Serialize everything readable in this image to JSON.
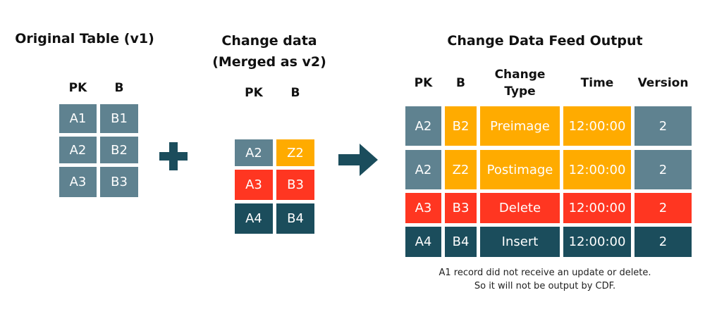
{
  "colors": {
    "unchanged": "#5f8290",
    "update": "#ffab00",
    "delete": "#ff3621",
    "insert": "#1b4d5c"
  },
  "original": {
    "title": "Original Table (v1)",
    "headers": [
      "PK",
      "B"
    ],
    "rows": [
      {
        "cells": [
          "A1",
          "B1"
        ],
        "colors": [
          "unchanged",
          "unchanged"
        ]
      },
      {
        "cells": [
          "A2",
          "B2"
        ],
        "colors": [
          "unchanged",
          "unchanged"
        ]
      },
      {
        "cells": [
          "A3",
          "B3"
        ],
        "colors": [
          "unchanged",
          "unchanged"
        ]
      }
    ]
  },
  "plus_icon": "plus-icon",
  "change": {
    "title_line1": "Change data",
    "title_line2": "(Merged as v2)",
    "headers": [
      "PK",
      "B"
    ],
    "rows": [
      {
        "cells": [
          "A2",
          "Z2"
        ],
        "colors": [
          "unchanged",
          "update"
        ]
      },
      {
        "cells": [
          "A3",
          "B3"
        ],
        "colors": [
          "delete",
          "delete"
        ]
      },
      {
        "cells": [
          "A4",
          "B4"
        ],
        "colors": [
          "insert",
          "insert"
        ]
      }
    ]
  },
  "arrow_icon": "arrow-right-icon",
  "cdf": {
    "title": "Change Data Feed Output",
    "headers": [
      "PK",
      "B",
      "Change\nType",
      "Time",
      "Version"
    ],
    "rows": [
      {
        "cells": [
          "A2",
          "B2",
          "Preimage",
          "12:00:00",
          "2"
        ],
        "colors": [
          "unchanged",
          "update",
          "update",
          "update",
          "unchanged"
        ]
      },
      {
        "cells": [
          "A2",
          "Z2",
          "Postimage",
          "12:00:00",
          "2"
        ],
        "colors": [
          "unchanged",
          "update",
          "update",
          "update",
          "unchanged"
        ]
      },
      {
        "cells": [
          "A3",
          "B3",
          "Delete",
          "12:00:00",
          "2"
        ],
        "colors": [
          "delete",
          "delete",
          "delete",
          "delete",
          "delete"
        ]
      },
      {
        "cells": [
          "A4",
          "B4",
          "Insert",
          "12:00:00",
          "2"
        ],
        "colors": [
          "insert",
          "insert",
          "insert",
          "insert",
          "insert"
        ]
      }
    ],
    "note_line1": "A1 record did not receive an update or delete.",
    "note_line2": "So it will not be output  by CDF."
  }
}
